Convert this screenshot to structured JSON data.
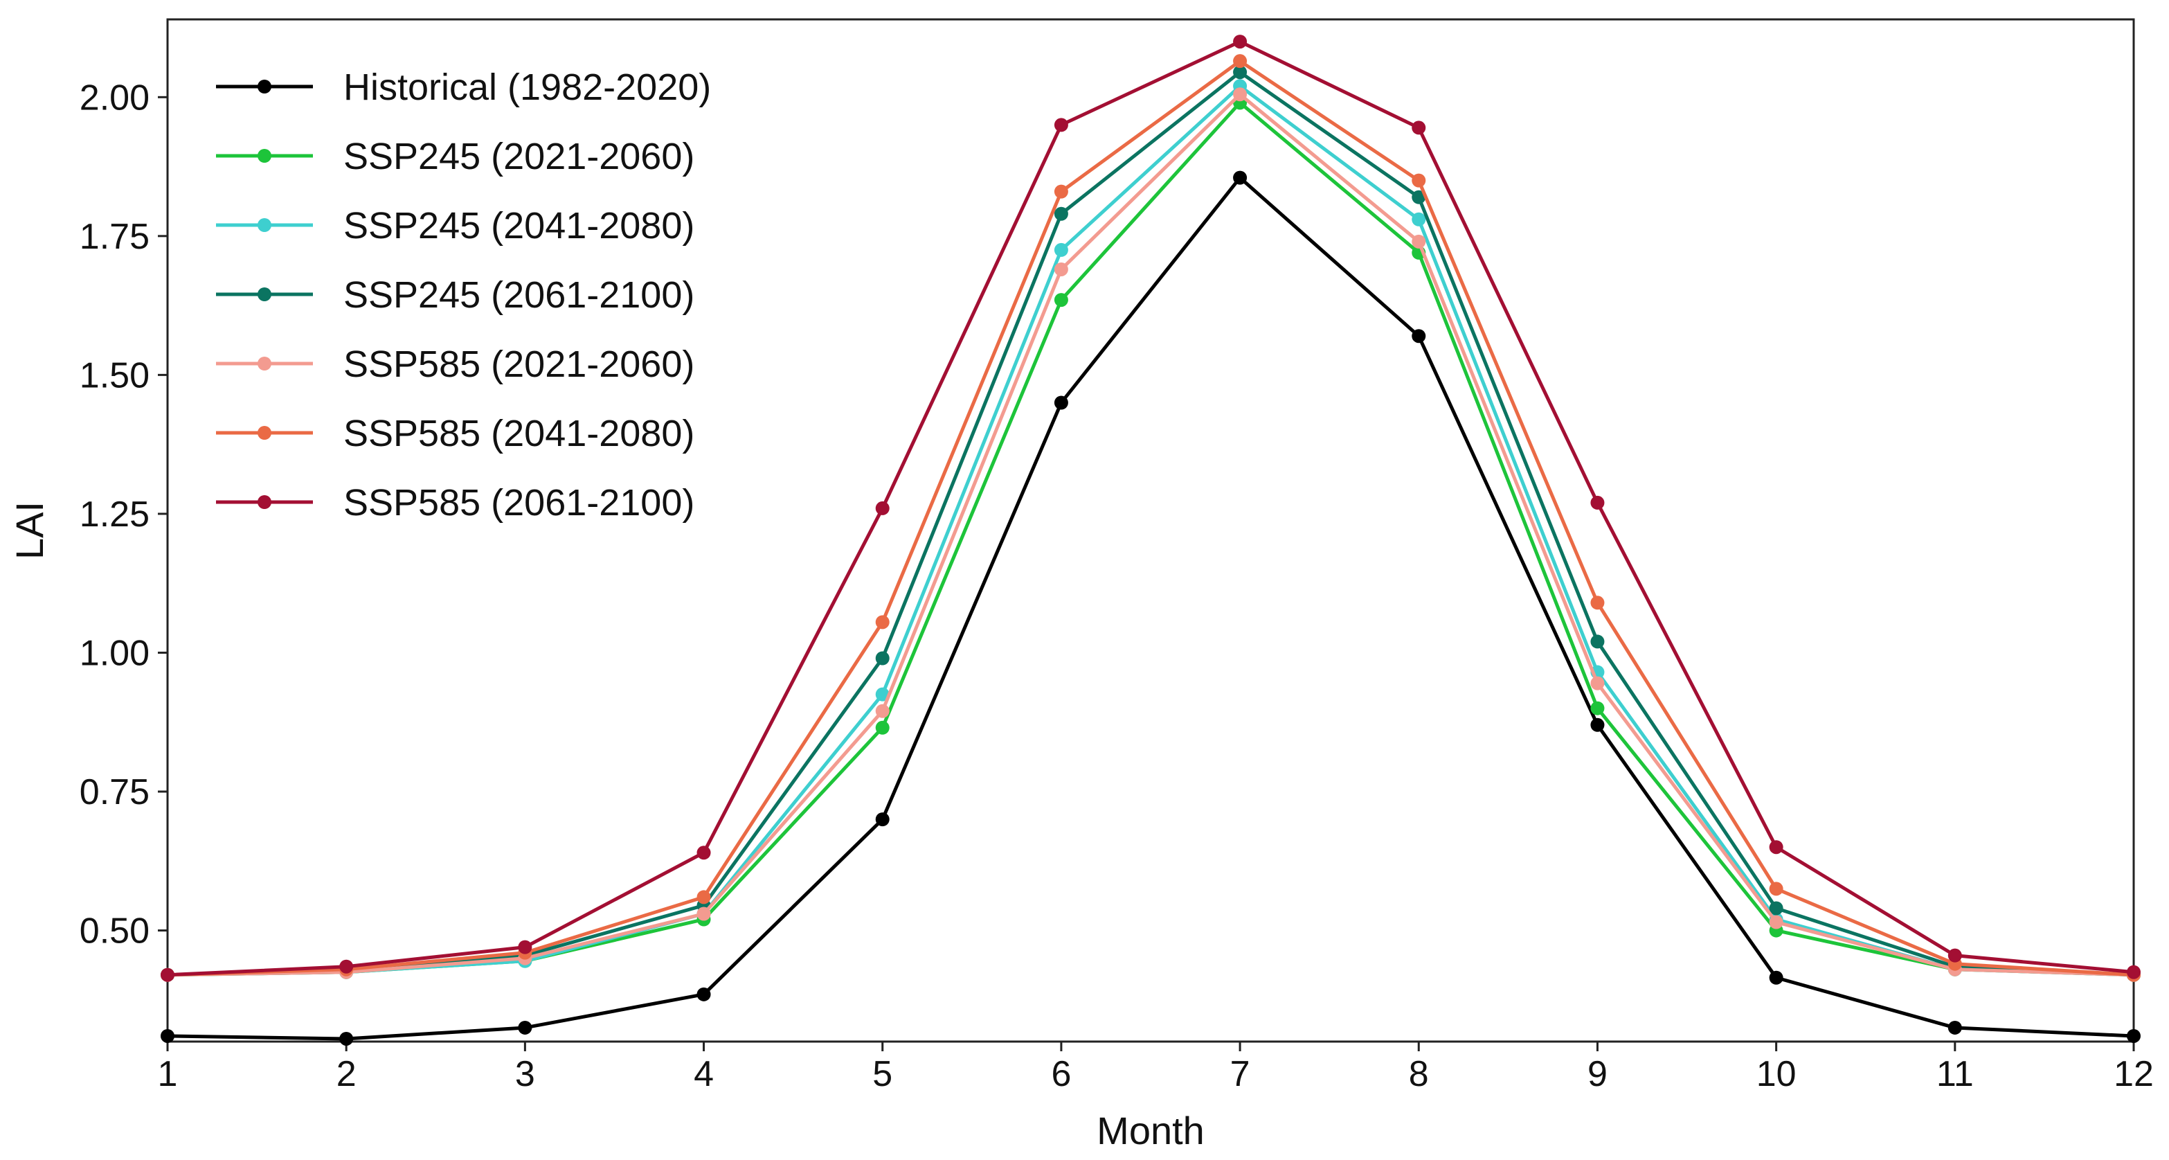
{
  "chart_data": {
    "type": "line",
    "title": "",
    "xlabel": "Month",
    "ylabel": "LAI",
    "xlim": [
      1,
      12
    ],
    "ylim": [
      0.3,
      2.14
    ],
    "x": [
      1,
      2,
      3,
      4,
      5,
      6,
      7,
      8,
      9,
      10,
      11,
      12
    ],
    "x_tick_labels": [
      "1",
      "2",
      "3",
      "4",
      "5",
      "6",
      "7",
      "8",
      "9",
      "10",
      "11",
      "12"
    ],
    "y_ticks": [
      0.5,
      0.75,
      1.0,
      1.25,
      1.5,
      1.75,
      2.0
    ],
    "y_tick_labels": [
      "0.50",
      "0.75",
      "1.00",
      "1.25",
      "1.50",
      "1.75",
      "2.00"
    ],
    "grid": false,
    "legend_position": "top-left",
    "series": [
      {
        "name": "Historical (1982-2020)",
        "color": "#000000",
        "values": [
          0.31,
          0.305,
          0.325,
          0.385,
          0.7,
          1.45,
          1.855,
          1.57,
          0.87,
          0.415,
          0.325,
          0.31
        ]
      },
      {
        "name": "SSP245 (2021-2060)",
        "color": "#1dc43a",
        "values": [
          0.42,
          0.425,
          0.445,
          0.52,
          0.865,
          1.635,
          1.99,
          1.72,
          0.9,
          0.5,
          0.43,
          0.42
        ]
      },
      {
        "name": "SSP245 (2041-2080)",
        "color": "#3ecfcf",
        "values": [
          0.42,
          0.425,
          0.445,
          0.53,
          0.925,
          1.725,
          2.02,
          1.78,
          0.965,
          0.52,
          0.43,
          0.42
        ]
      },
      {
        "name": "SSP245 (2061-2100)",
        "color": "#0b7461",
        "values": [
          0.42,
          0.43,
          0.455,
          0.545,
          0.99,
          1.79,
          2.045,
          1.82,
          1.02,
          0.54,
          0.435,
          0.42
        ]
      },
      {
        "name": "SSP585 (2021-2060)",
        "color": "#f39b90",
        "values": [
          0.42,
          0.425,
          0.45,
          0.53,
          0.895,
          1.69,
          2.005,
          1.74,
          0.945,
          0.515,
          0.43,
          0.42
        ]
      },
      {
        "name": "SSP585 (2041-2080)",
        "color": "#ea6a45",
        "values": [
          0.42,
          0.43,
          0.46,
          0.56,
          1.055,
          1.83,
          2.065,
          1.85,
          1.09,
          0.575,
          0.44,
          0.42
        ]
      },
      {
        "name": "SSP585 (2061-2100)",
        "color": "#a30f33",
        "values": [
          0.42,
          0.435,
          0.47,
          0.64,
          1.26,
          1.95,
          2.1,
          1.945,
          1.27,
          0.65,
          0.455,
          0.425
        ]
      }
    ]
  }
}
